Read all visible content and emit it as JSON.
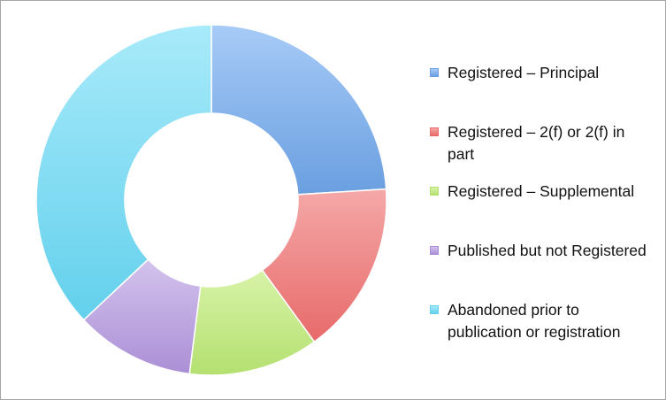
{
  "chart_data": {
    "type": "pie",
    "variant": "donut",
    "title": "",
    "legend_position": "right",
    "categories": [
      "Registered – Principal",
      "Registered – 2(f) or 2(f) in part",
      "Registered – Supplemental",
      "Published but not Registered",
      "Abandoned prior to publication or registration"
    ],
    "values": [
      24,
      16,
      12,
      11,
      37
    ],
    "colors": [
      "#6a9fe0",
      "#e86a6a",
      "#b4e070",
      "#ab8fd6",
      "#63d0ec"
    ],
    "colors_light": [
      "#a7cbf7",
      "#f5a8a8",
      "#d8f3a8",
      "#d3c3ed",
      "#a8eafa"
    ]
  }
}
